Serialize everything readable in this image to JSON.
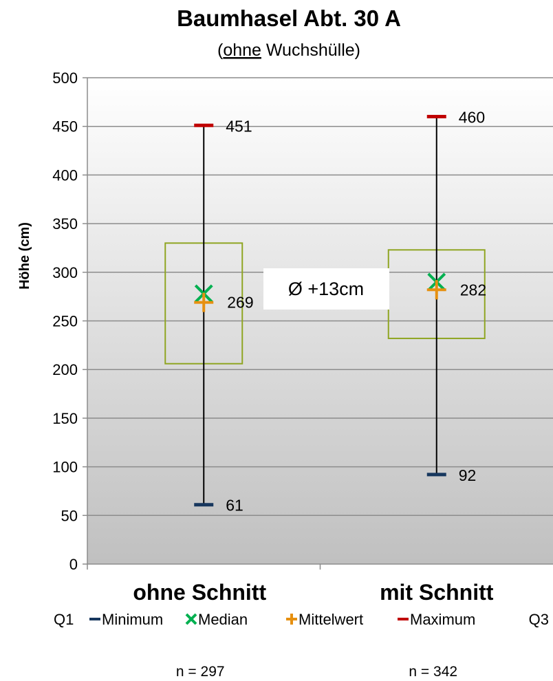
{
  "chart_data": {
    "type": "box",
    "title": "Baumhasel Abt. 30 A",
    "subtitle_prefix": "(",
    "subtitle_underlined": "ohne",
    "subtitle_rest": " Wuchshülle)",
    "ylabel": "Höhe (cm)",
    "xlabel": "",
    "ylim": [
      0,
      500
    ],
    "yticks": [
      0,
      50,
      100,
      150,
      200,
      250,
      300,
      350,
      400,
      450,
      500
    ],
    "grid": true,
    "categories": [
      "ohne Schnitt",
      "mit Schnitt"
    ],
    "groups": [
      {
        "category": "ohne Schnitt",
        "min": 61,
        "q1": 206,
        "median": 278,
        "mean": 269,
        "q3": 330,
        "max": 451,
        "n_label": "n = 297"
      },
      {
        "category": "mit Schnitt",
        "min": 92,
        "q1": 232,
        "median": 290,
        "mean": 282,
        "q3": 323,
        "max": 460,
        "n_label": "n = 342"
      }
    ],
    "data_labels": [
      "451",
      "269",
      "61",
      "460",
      "282",
      "92"
    ],
    "annotation": "Ø +13cm",
    "legend": {
      "placement": "bottom",
      "left_label": "Q1",
      "right_label": "Q3",
      "items": [
        {
          "label": "Minimum",
          "marker": "dash",
          "color": "#17375e"
        },
        {
          "label": "Median",
          "marker": "x",
          "color": "#00b050"
        },
        {
          "label": "Mittelwert",
          "marker": "plus",
          "color": "#e69010"
        },
        {
          "label": "Maximum",
          "marker": "dash",
          "color": "#c00000"
        }
      ]
    },
    "colors": {
      "box": "#8fa522",
      "whisker": "#000000",
      "minimum": "#17375e",
      "median": "#00b050",
      "mean": "#e69010",
      "maximum": "#c00000",
      "plot_bg_top": "#ffffff",
      "plot_bg_bottom": "#c0c0c0",
      "grid": "#8c8c8c"
    }
  }
}
